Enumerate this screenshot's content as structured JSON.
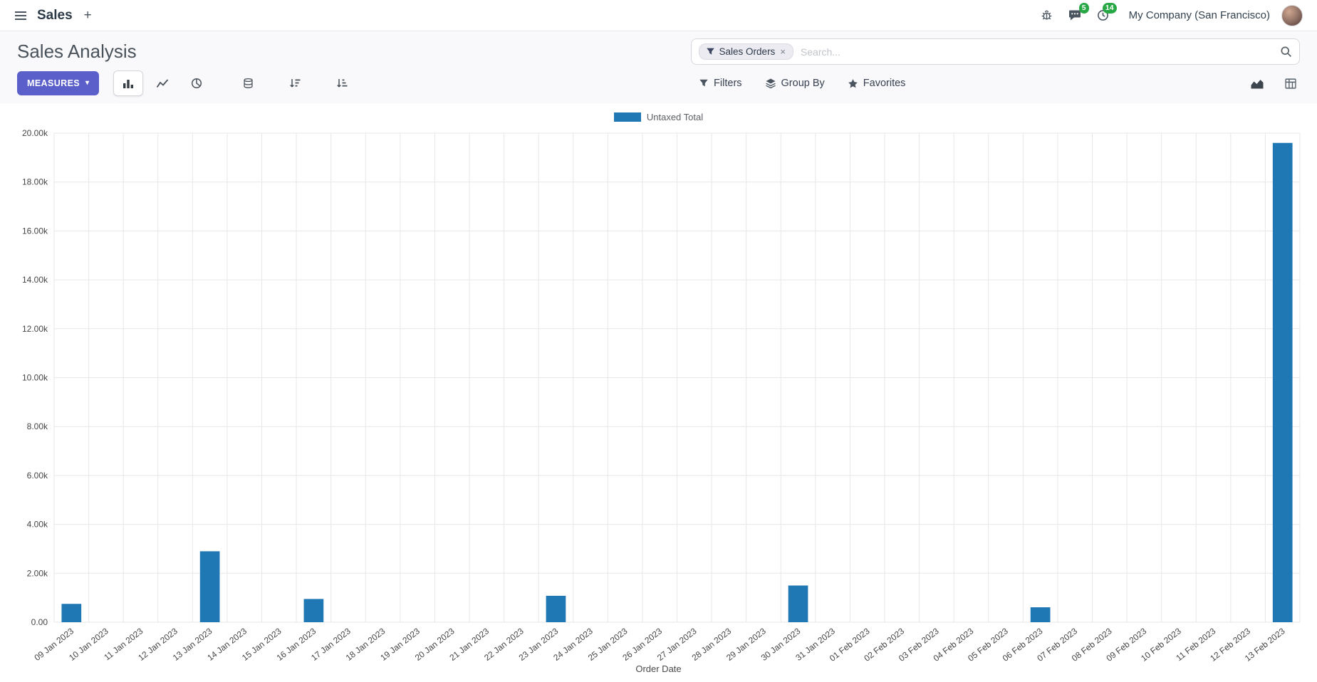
{
  "navbar": {
    "app_name": "Sales",
    "company": "My Company (San Francisco)",
    "badges": {
      "messages": "5",
      "activities": "14"
    }
  },
  "control_panel": {
    "title": "Sales Analysis",
    "measures_label": "Measures",
    "filters_label": "Filters",
    "group_by_label": "Group By",
    "favorites_label": "Favorites",
    "search": {
      "facet": "Sales Orders",
      "placeholder": "Search..."
    }
  },
  "glyphs": {
    "caret_down": "▾",
    "close": "×",
    "plus": "+"
  },
  "colors": {
    "bar": "#1f77b4",
    "measures_button": "#5a5fca",
    "badge_green": "#28a745",
    "gridline": "#e7e7e7",
    "tick_text": "#454545"
  },
  "chart_data": {
    "type": "bar",
    "title": "",
    "xlabel": "Order Date",
    "ylabel": "",
    "ylim": [
      0,
      20000
    ],
    "ytick_step": 2000,
    "ytick_labels": [
      "0.00",
      "2.00k",
      "4.00k",
      "6.00k",
      "8.00k",
      "10.00k",
      "12.00k",
      "14.00k",
      "16.00k",
      "18.00k",
      "20.00k"
    ],
    "grid": true,
    "legend_position": "top",
    "categories": [
      "09 Jan 2023",
      "10 Jan 2023",
      "11 Jan 2023",
      "12 Jan 2023",
      "13 Jan 2023",
      "14 Jan 2023",
      "15 Jan 2023",
      "16 Jan 2023",
      "17 Jan 2023",
      "18 Jan 2023",
      "19 Jan 2023",
      "20 Jan 2023",
      "21 Jan 2023",
      "22 Jan 2023",
      "23 Jan 2023",
      "24 Jan 2023",
      "25 Jan 2023",
      "26 Jan 2023",
      "27 Jan 2023",
      "28 Jan 2023",
      "29 Jan 2023",
      "30 Jan 2023",
      "31 Jan 2023",
      "01 Feb 2023",
      "02 Feb 2023",
      "03 Feb 2023",
      "04 Feb 2023",
      "05 Feb 2023",
      "06 Feb 2023",
      "07 Feb 2023",
      "08 Feb 2023",
      "09 Feb 2023",
      "10 Feb 2023",
      "11 Feb 2023",
      "12 Feb 2023",
      "13 Feb 2023"
    ],
    "series": [
      {
        "name": "Untaxed Total",
        "color": "#1f77b4",
        "values": [
          750,
          0,
          0,
          0,
          2900,
          0,
          0,
          950,
          0,
          0,
          0,
          0,
          0,
          0,
          1080,
          0,
          0,
          0,
          0,
          0,
          0,
          1500,
          0,
          0,
          0,
          0,
          0,
          0,
          610,
          0,
          0,
          0,
          0,
          0,
          0,
          19600
        ]
      }
    ]
  }
}
